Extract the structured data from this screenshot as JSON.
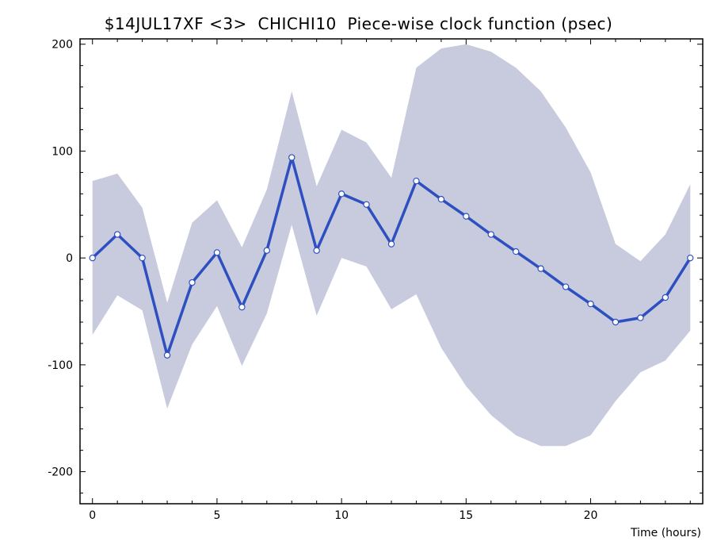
{
  "colors": {
    "band": "#c7cbdd",
    "line": "#2d4fc0",
    "marker_fill": "#ffffff",
    "marker_stroke": "#2d4fc0",
    "axis": "#000000"
  },
  "chart_data": {
    "type": "line",
    "title": "$14JUL17XF <3>  CHICHI10  Piece-wise clock function (psec)",
    "xlabel": "Time (hours)",
    "ylabel": "",
    "xlim": [
      -0.5,
      24.5
    ],
    "ylim": [
      -230,
      205
    ],
    "xticks": [
      0,
      5,
      10,
      15,
      20
    ],
    "yticks": [
      -200,
      -100,
      0,
      100,
      200
    ],
    "grid": false,
    "legend": "none",
    "series": [
      {
        "style": "line-with-markers",
        "x": [
          0,
          1,
          2,
          3,
          4,
          5,
          6,
          7,
          8,
          9,
          10,
          11,
          12,
          13,
          14,
          15,
          16,
          17,
          18,
          19,
          20,
          21,
          22,
          23,
          24
        ],
        "y": [
          0,
          22,
          0,
          -91,
          -23,
          5,
          -46,
          7,
          94,
          7,
          60,
          50,
          13,
          72,
          55,
          39,
          22,
          6,
          -10,
          -27,
          -43,
          -60,
          -56,
          -37,
          0
        ]
      }
    ],
    "uncertainty_band": {
      "x": [
        0,
        1,
        2,
        3,
        4,
        5,
        6,
        7,
        8,
        9,
        10,
        11,
        12,
        13,
        14,
        15,
        16,
        17,
        18,
        19,
        20,
        21,
        22,
        23,
        24
      ],
      "upper": [
        72,
        79,
        47,
        -42,
        33,
        54,
        10,
        64,
        156,
        67,
        120,
        108,
        75,
        178,
        196,
        200,
        193,
        178,
        156,
        122,
        80,
        13,
        -3,
        22,
        69
      ],
      "lower": [
        -72,
        -35,
        -49,
        -141,
        -81,
        -45,
        -101,
        -52,
        31,
        -54,
        0,
        -8,
        -48,
        -34,
        -84,
        -120,
        -147,
        -166,
        -176,
        -176,
        -166,
        -134,
        -107,
        -96,
        -68
      ]
    }
  }
}
